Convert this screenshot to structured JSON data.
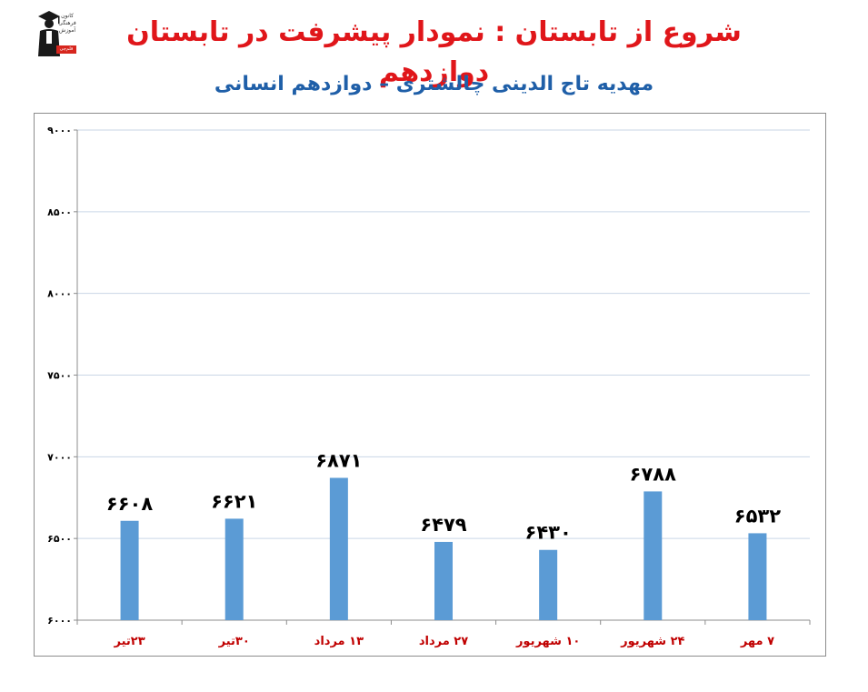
{
  "header": {
    "title": "شروع از تابستان : نمودار پیشرفت در تابستان دوازدهم",
    "subtitle": "مهدیه تاج الدینی چالشتری – دوازدهم انسانی",
    "logo": {
      "icon": "graduate-icon",
      "text": "کانون فرهنگی آموزش",
      "badge": "قلم‌چی"
    }
  },
  "colors": {
    "title": "#e0161a",
    "subtitle": "#1f5fa8",
    "bar": "#5b9bd5",
    "x_tick": "#c00000",
    "grid": "#c9d6e6"
  },
  "chart_data": {
    "type": "bar",
    "title": "",
    "xlabel": "",
    "ylabel": "",
    "categories": [
      "۲۳تیر",
      "۳۰تیر",
      "۱۳ مرداد",
      "۲۷ مرداد",
      "۱۰ شهریور",
      "۲۴ شهریور",
      "۷ مهر"
    ],
    "values": [
      6608,
      6621,
      6871,
      6479,
      6430,
      6788,
      6532
    ],
    "value_labels": [
      "۶۶۰۸",
      "۶۶۲۱",
      "۶۸۷۱",
      "۶۴۷۹",
      "۶۴۳۰",
      "۶۷۸۸",
      "۶۵۳۲"
    ],
    "ylim": [
      6000,
      9000
    ],
    "yticks": [
      6000,
      6500,
      7000,
      7500,
      8000,
      8500,
      9000
    ],
    "ytick_labels": [
      "۶۰۰۰",
      "۶۵۰۰",
      "۷۰۰۰",
      "۷۵۰۰",
      "۸۰۰۰",
      "۸۵۰۰",
      "۹۰۰۰"
    ],
    "grid": true,
    "legend": "none"
  }
}
